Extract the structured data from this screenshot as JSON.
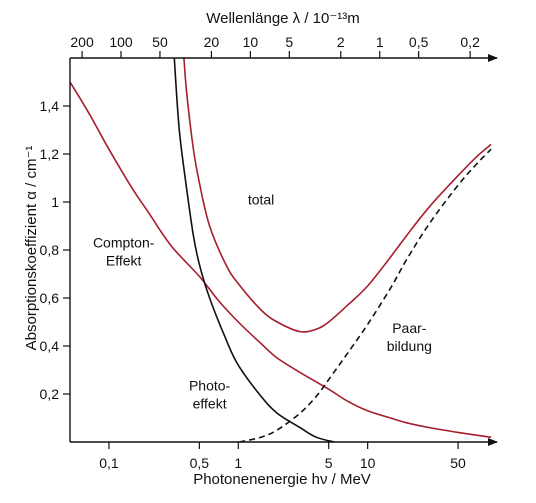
{
  "chart_data": {
    "type": "line",
    "scale": {
      "x": "log",
      "y": "linear"
    },
    "xlabel": "Photonenenergie  hν / MeV",
    "x2label": "Wellenlänge  λ / 10⁻¹³m",
    "ylabel": "Absorptionskoeffizient  α / cm⁻¹",
    "xlim": [
      0.05,
      100
    ],
    "ylim": [
      0,
      1.6
    ],
    "x_ticks": [
      {
        "value": 0.1,
        "label": "0,1"
      },
      {
        "value": 0.5,
        "label": "0,5"
      },
      {
        "value": 1,
        "label": "1"
      },
      {
        "value": 5,
        "label": "5"
      },
      {
        "value": 10,
        "label": "10"
      },
      {
        "value": 50,
        "label": "50"
      }
    ],
    "x2_ticks": [
      {
        "value": 200,
        "label": "200"
      },
      {
        "value": 100,
        "label": "100"
      },
      {
        "value": 50,
        "label": "50"
      },
      {
        "value": 20,
        "label": "20"
      },
      {
        "value": 10,
        "label": "10"
      },
      {
        "value": 5,
        "label": "5"
      },
      {
        "value": 2,
        "label": "2"
      },
      {
        "value": 1,
        "label": "1"
      },
      {
        "value": 0.5,
        "label": "0,5"
      },
      {
        "value": 0.2,
        "label": "0,2"
      }
    ],
    "y_ticks": [
      {
        "value": 0.2,
        "label": "0,2"
      },
      {
        "value": 0.4,
        "label": "0,4"
      },
      {
        "value": 0.6,
        "label": "0,6"
      },
      {
        "value": 0.8,
        "label": "0,8"
      },
      {
        "value": 1.0,
        "label": "1"
      },
      {
        "value": 1.2,
        "label": "1,2"
      },
      {
        "value": 1.4,
        "label": "1,4"
      }
    ],
    "grid": false,
    "series": [
      {
        "name": "total",
        "color": "#a61e2e",
        "style": "solid",
        "points": [
          [
            0.38,
            1.6
          ],
          [
            0.4,
            1.45
          ],
          [
            0.45,
            1.22
          ],
          [
            0.5,
            1.08
          ],
          [
            0.6,
            0.9
          ],
          [
            0.8,
            0.74
          ],
          [
            1.0,
            0.66
          ],
          [
            1.5,
            0.55
          ],
          [
            2.0,
            0.5
          ],
          [
            3.0,
            0.46
          ],
          [
            4.0,
            0.47
          ],
          [
            5.0,
            0.5
          ],
          [
            7.0,
            0.57
          ],
          [
            10.0,
            0.65
          ],
          [
            15.0,
            0.77
          ],
          [
            20.0,
            0.86
          ],
          [
            30.0,
            0.98
          ],
          [
            50.0,
            1.11
          ],
          [
            70.0,
            1.19
          ],
          [
            90.0,
            1.24
          ]
        ]
      },
      {
        "name": "Compton-Effekt",
        "color": "#a61e2e",
        "style": "solid",
        "points": [
          [
            0.05,
            1.5
          ],
          [
            0.07,
            1.37
          ],
          [
            0.1,
            1.22
          ],
          [
            0.15,
            1.06
          ],
          [
            0.2,
            0.96
          ],
          [
            0.3,
            0.82
          ],
          [
            0.5,
            0.69
          ],
          [
            0.7,
            0.59
          ],
          [
            1.0,
            0.5
          ],
          [
            1.5,
            0.41
          ],
          [
            2.0,
            0.35
          ],
          [
            3.0,
            0.29
          ],
          [
            5.0,
            0.22
          ],
          [
            7.0,
            0.17
          ],
          [
            10.0,
            0.13
          ],
          [
            15.0,
            0.1
          ],
          [
            20.0,
            0.08
          ],
          [
            30.0,
            0.06
          ],
          [
            50.0,
            0.04
          ],
          [
            90.0,
            0.02
          ]
        ]
      },
      {
        "name": "Photoeffekt",
        "color": "#111111",
        "style": "solid",
        "points": [
          [
            0.32,
            1.6
          ],
          [
            0.35,
            1.3
          ],
          [
            0.4,
            1.05
          ],
          [
            0.45,
            0.86
          ],
          [
            0.5,
            0.74
          ],
          [
            0.6,
            0.6
          ],
          [
            0.8,
            0.43
          ],
          [
            1.0,
            0.32
          ],
          [
            1.5,
            0.19
          ],
          [
            2.0,
            0.12
          ],
          [
            3.0,
            0.06
          ],
          [
            4.0,
            0.02
          ],
          [
            5.5,
            0.0
          ]
        ]
      },
      {
        "name": "Paarbildung",
        "color": "#111111",
        "style": "dashed",
        "points": [
          [
            1.02,
            0.0
          ],
          [
            1.5,
            0.02
          ],
          [
            2.0,
            0.05
          ],
          [
            3.0,
            0.12
          ],
          [
            4.0,
            0.19
          ],
          [
            5.0,
            0.26
          ],
          [
            7.0,
            0.37
          ],
          [
            10.0,
            0.49
          ],
          [
            15.0,
            0.64
          ],
          [
            20.0,
            0.76
          ],
          [
            30.0,
            0.91
          ],
          [
            50.0,
            1.07
          ],
          [
            70.0,
            1.16
          ],
          [
            90.0,
            1.22
          ]
        ]
      }
    ],
    "annotations": [
      {
        "id": "total",
        "lines": [
          "total"
        ],
        "x": 1.5,
        "y": 0.99
      },
      {
        "id": "compton",
        "lines": [
          "Compton-",
          "Effekt"
        ],
        "x": 0.13,
        "y": 0.81
      },
      {
        "id": "photo",
        "lines": [
          "Photo-",
          "effekt"
        ],
        "x": 0.6,
        "y": 0.215
      },
      {
        "id": "paar",
        "lines": [
          "Paar-",
          "bildung"
        ],
        "x": 21,
        "y": 0.455
      }
    ]
  }
}
